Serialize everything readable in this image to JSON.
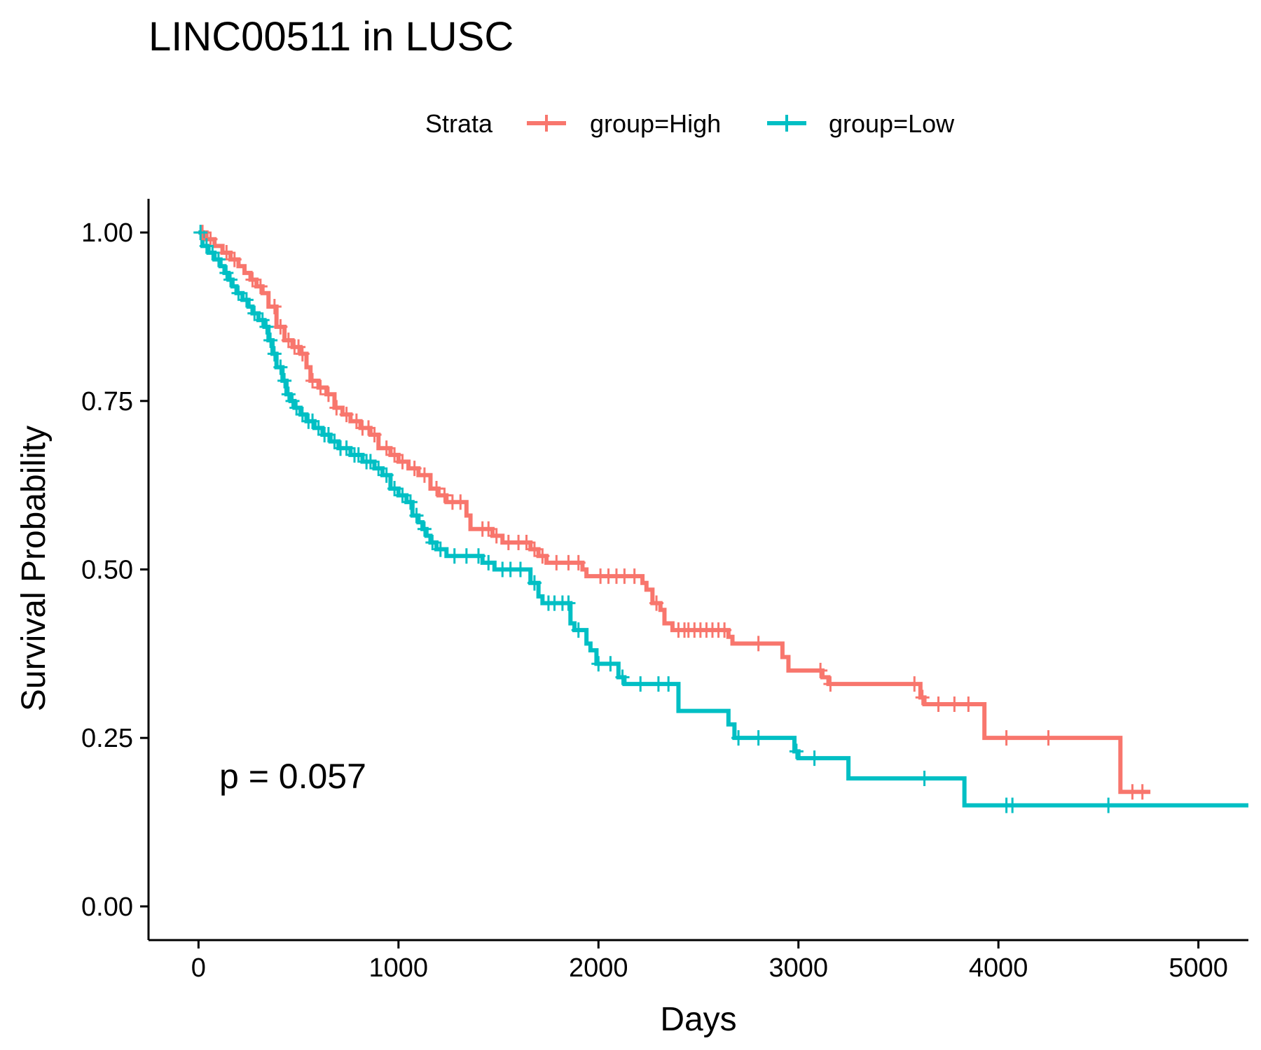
{
  "chart_data": {
    "type": "line",
    "subtype": "kaplan-meier",
    "title": "LINC00511 in LUSC",
    "xlabel": "Days",
    "ylabel": "Survival Probability",
    "xlim": [
      -250,
      5250
    ],
    "ylim": [
      -0.05,
      1.05
    ],
    "x_ticks": [
      0,
      1000,
      2000,
      3000,
      4000,
      5000
    ],
    "y_ticks": [
      0,
      0.25,
      0.5,
      0.75,
      1.0
    ],
    "x_tick_labels": [
      "0",
      "1000",
      "2000",
      "3000",
      "4000",
      "5000"
    ],
    "y_tick_labels": [
      "0.00",
      "0.25",
      "0.50",
      "0.75",
      "1.00"
    ],
    "grid": false,
    "legend": {
      "title": "Strata",
      "position": "top",
      "labels": [
        "group=High",
        "group=Low"
      ]
    },
    "annotation": "p = 0.057",
    "series": [
      {
        "name": "group=High",
        "color": "#F8766D",
        "steps": [
          [
            0,
            1.0
          ],
          [
            40,
            0.99
          ],
          [
            80,
            0.98
          ],
          [
            120,
            0.97
          ],
          [
            160,
            0.96
          ],
          [
            200,
            0.95
          ],
          [
            230,
            0.94
          ],
          [
            260,
            0.93
          ],
          [
            290,
            0.92
          ],
          [
            320,
            0.91
          ],
          [
            350,
            0.89
          ],
          [
            390,
            0.86
          ],
          [
            430,
            0.84
          ],
          [
            470,
            0.83
          ],
          [
            510,
            0.82
          ],
          [
            540,
            0.8
          ],
          [
            560,
            0.78
          ],
          [
            600,
            0.77
          ],
          [
            640,
            0.76
          ],
          [
            680,
            0.74
          ],
          [
            720,
            0.73
          ],
          [
            760,
            0.72
          ],
          [
            810,
            0.71
          ],
          [
            860,
            0.7
          ],
          [
            900,
            0.68
          ],
          [
            960,
            0.67
          ],
          [
            1000,
            0.66
          ],
          [
            1050,
            0.65
          ],
          [
            1100,
            0.64
          ],
          [
            1160,
            0.62
          ],
          [
            1200,
            0.61
          ],
          [
            1240,
            0.6
          ],
          [
            1340,
            0.58
          ],
          [
            1360,
            0.56
          ],
          [
            1470,
            0.55
          ],
          [
            1520,
            0.54
          ],
          [
            1660,
            0.53
          ],
          [
            1700,
            0.52
          ],
          [
            1740,
            0.51
          ],
          [
            1920,
            0.5
          ],
          [
            1940,
            0.49
          ],
          [
            2220,
            0.48
          ],
          [
            2240,
            0.47
          ],
          [
            2270,
            0.45
          ],
          [
            2310,
            0.44
          ],
          [
            2330,
            0.42
          ],
          [
            2370,
            0.41
          ],
          [
            2650,
            0.4
          ],
          [
            2670,
            0.39
          ],
          [
            2920,
            0.37
          ],
          [
            2950,
            0.35
          ],
          [
            3120,
            0.34
          ],
          [
            3150,
            0.33
          ],
          [
            3610,
            0.31
          ],
          [
            3630,
            0.3
          ],
          [
            3930,
            0.25
          ],
          [
            4610,
            0.17
          ],
          [
            4760,
            0.17
          ]
        ],
        "censor": [
          20,
          60,
          140,
          180,
          270,
          310,
          380,
          410,
          450,
          480,
          500,
          520,
          570,
          610,
          650,
          690,
          740,
          790,
          820,
          850,
          880,
          940,
          980,
          1020,
          1080,
          1130,
          1190,
          1230,
          1270,
          1310,
          1420,
          1450,
          1490,
          1550,
          1600,
          1640,
          1680,
          1720,
          1790,
          1850,
          1900,
          2010,
          2050,
          2090,
          2130,
          2180,
          2290,
          2400,
          2430,
          2450,
          2480,
          2510,
          2540,
          2570,
          2600,
          2630,
          2800,
          3110,
          3160,
          3580,
          3620,
          3700,
          3780,
          3850,
          4040,
          4250,
          4670,
          4720
        ]
      },
      {
        "name": "group=Low",
        "color": "#00BFC4",
        "steps": [
          [
            0,
            1.0
          ],
          [
            20,
            0.98
          ],
          [
            50,
            0.97
          ],
          [
            80,
            0.96
          ],
          [
            110,
            0.95
          ],
          [
            130,
            0.94
          ],
          [
            150,
            0.93
          ],
          [
            170,
            0.92
          ],
          [
            190,
            0.91
          ],
          [
            220,
            0.9
          ],
          [
            250,
            0.89
          ],
          [
            270,
            0.88
          ],
          [
            300,
            0.87
          ],
          [
            330,
            0.86
          ],
          [
            350,
            0.84
          ],
          [
            370,
            0.82
          ],
          [
            390,
            0.8
          ],
          [
            420,
            0.78
          ],
          [
            440,
            0.76
          ],
          [
            460,
            0.75
          ],
          [
            480,
            0.74
          ],
          [
            510,
            0.73
          ],
          [
            540,
            0.72
          ],
          [
            580,
            0.71
          ],
          [
            620,
            0.7
          ],
          [
            660,
            0.69
          ],
          [
            700,
            0.68
          ],
          [
            760,
            0.67
          ],
          [
            820,
            0.66
          ],
          [
            880,
            0.65
          ],
          [
            920,
            0.64
          ],
          [
            960,
            0.62
          ],
          [
            1000,
            0.61
          ],
          [
            1040,
            0.6
          ],
          [
            1070,
            0.58
          ],
          [
            1100,
            0.57
          ],
          [
            1120,
            0.56
          ],
          [
            1140,
            0.55
          ],
          [
            1160,
            0.54
          ],
          [
            1190,
            0.53
          ],
          [
            1240,
            0.52
          ],
          [
            1420,
            0.51
          ],
          [
            1480,
            0.5
          ],
          [
            1660,
            0.48
          ],
          [
            1700,
            0.46
          ],
          [
            1720,
            0.45
          ],
          [
            1860,
            0.42
          ],
          [
            1880,
            0.41
          ],
          [
            1940,
            0.39
          ],
          [
            1960,
            0.38
          ],
          [
            1990,
            0.36
          ],
          [
            2100,
            0.34
          ],
          [
            2130,
            0.33
          ],
          [
            2400,
            0.29
          ],
          [
            2650,
            0.27
          ],
          [
            2680,
            0.25
          ],
          [
            2980,
            0.23
          ],
          [
            3000,
            0.22
          ],
          [
            3250,
            0.19
          ],
          [
            3830,
            0.15
          ],
          [
            5250,
            0.15
          ]
        ],
        "censor": [
          10,
          40,
          70,
          100,
          140,
          160,
          200,
          240,
          280,
          320,
          340,
          360,
          380,
          410,
          430,
          450,
          470,
          490,
          520,
          550,
          570,
          600,
          630,
          650,
          680,
          710,
          740,
          780,
          800,
          840,
          860,
          900,
          940,
          980,
          1020,
          1060,
          1090,
          1130,
          1170,
          1210,
          1280,
          1340,
          1400,
          1450,
          1520,
          1560,
          1610,
          1680,
          1750,
          1780,
          1820,
          1850,
          1900,
          2000,
          2060,
          2120,
          2210,
          2300,
          2350,
          2700,
          2800,
          2990,
          3080,
          3630,
          4040,
          4070,
          4550
        ]
      }
    ]
  }
}
